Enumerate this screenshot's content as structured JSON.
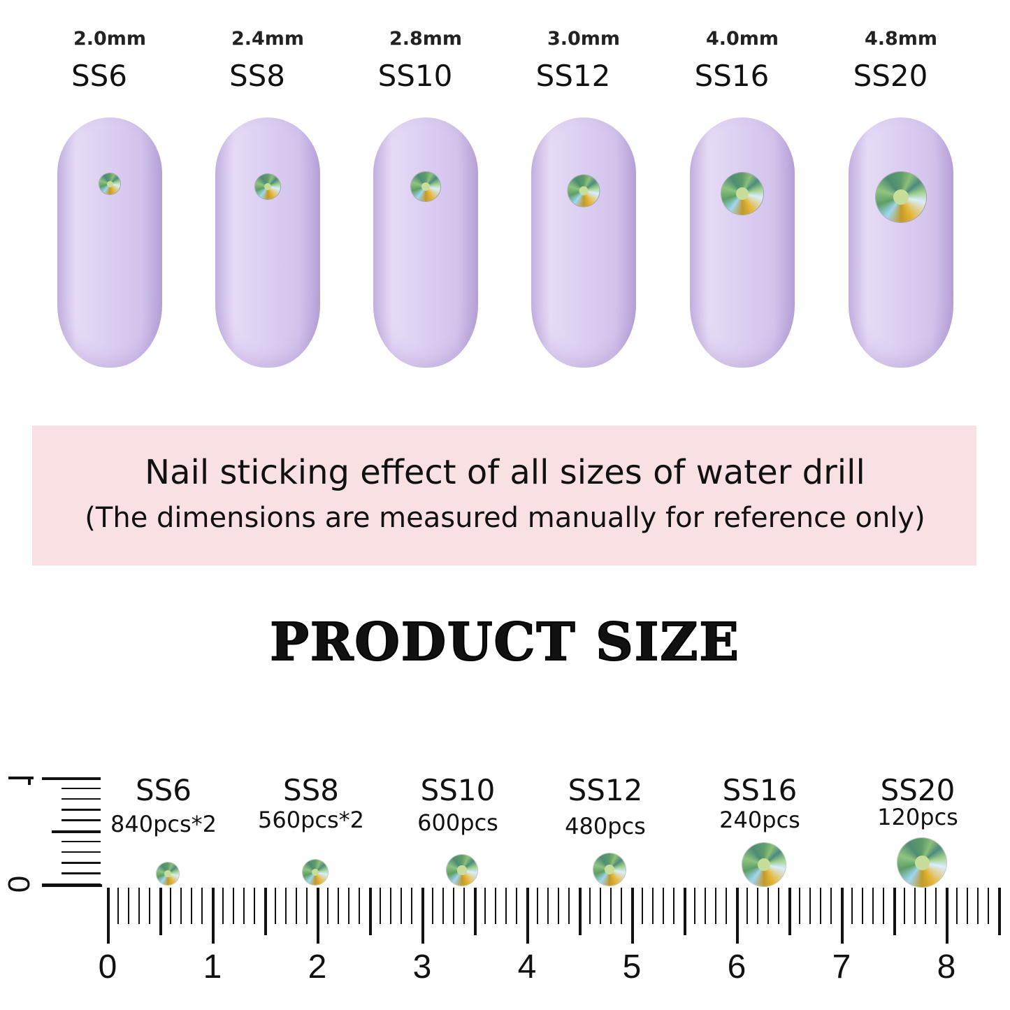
{
  "nails": [
    {
      "mm": "2.0mm",
      "ss": "SS6",
      "gem_diameter_mm": 2.0
    },
    {
      "mm": "2.4mm",
      "ss": "SS8",
      "gem_diameter_mm": 2.4
    },
    {
      "mm": "2.8mm",
      "ss": "SS10",
      "gem_diameter_mm": 2.8
    },
    {
      "mm": "3.0mm",
      "ss": "SS12",
      "gem_diameter_mm": 3.0
    },
    {
      "mm": "4.0mm",
      "ss": "SS16",
      "gem_diameter_mm": 4.0
    },
    {
      "mm": "4.8mm",
      "ss": "SS20",
      "gem_diameter_mm": 4.8
    }
  ],
  "banner": {
    "line1": "Nail sticking effect of all sizes of water drill",
    "line2": "(The dimensions are measured manually for reference only)",
    "background": "#f9e1e3"
  },
  "title": "PRODUCT SIZE",
  "ruler": {
    "labels": [
      "0",
      "1",
      "2",
      "3",
      "4",
      "5",
      "6",
      "7",
      "8"
    ],
    "vertical_labels": [
      "0",
      "1"
    ]
  },
  "products": [
    {
      "ss": "SS6",
      "count": "840pcs*2"
    },
    {
      "ss": "SS8",
      "count": "560pcs*2"
    },
    {
      "ss": "SS10",
      "count": "600pcs"
    },
    {
      "ss": "SS12",
      "count": "480pcs"
    },
    {
      "ss": "SS16",
      "count": "240pcs"
    },
    {
      "ss": "SS20",
      "count": "120pcs"
    }
  ],
  "colors": {
    "nail": "#ddd0f1",
    "gem": "#8cbf7a"
  }
}
